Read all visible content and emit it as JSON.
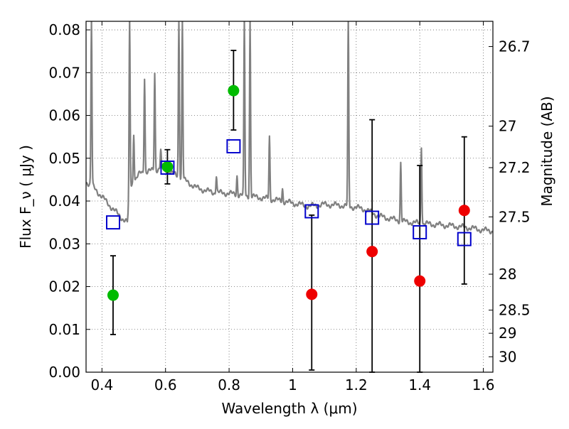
{
  "chart_data": {
    "type": "scatter",
    "xlabel": "Wavelength  λ (μm)",
    "ylabel_left": "Flux  F_ν  ( μJy )",
    "ylabel_right": "Magnitude (AB)",
    "xlim": [
      0.35,
      1.63
    ],
    "ylim": [
      0.0,
      0.082
    ],
    "grid": true,
    "x_ticks": [
      0.4,
      0.6,
      0.8,
      1.0,
      1.2,
      1.4,
      1.6
    ],
    "x_tick_labels": [
      "0.4",
      "0.6",
      "0.8",
      "1",
      "1.2",
      "1.4",
      "1.6"
    ],
    "y_ticks": [
      0.0,
      0.01,
      0.02,
      0.03,
      0.04,
      0.05,
      0.06,
      0.07,
      0.08
    ],
    "y_tick_labels": [
      "0.00",
      "0.01",
      "0.02",
      "0.03",
      "0.04",
      "0.05",
      "0.06",
      "0.07",
      "0.08"
    ],
    "right_ticks": [
      {
        "label": "26.7",
        "flux": 0.0761
      },
      {
        "label": "27",
        "flux": 0.0575
      },
      {
        "label": "27.2",
        "flux": 0.0478
      },
      {
        "label": "27.5",
        "flux": 0.0363
      },
      {
        "label": "28",
        "flux": 0.0229
      },
      {
        "label": "28.5",
        "flux": 0.0145
      },
      {
        "label": "29",
        "flux": 0.0091
      },
      {
        "label": "30",
        "flux": 0.0036
      }
    ],
    "colors": {
      "spectrum": "#808080",
      "measured_green": "#00bb00",
      "measured_red": "#ee0000",
      "model_boxes": "#0000cc",
      "errorbar": "#000000",
      "grid": "#888888"
    },
    "series": [
      {
        "kind": "measured_green",
        "points": [
          {
            "x": 0.435,
            "y": 0.018,
            "err_low": 0.0088,
            "err_high": 0.0272
          },
          {
            "x": 0.606,
            "y": 0.048,
            "err_low": 0.044,
            "err_high": 0.052
          },
          {
            "x": 0.814,
            "y": 0.0658,
            "err_low": 0.0566,
            "err_high": 0.0752
          }
        ]
      },
      {
        "kind": "measured_red",
        "points": [
          {
            "x": 1.06,
            "y": 0.0182,
            "err_low": 0.0005,
            "err_high": 0.0367
          },
          {
            "x": 1.25,
            "y": 0.0282,
            "err_low": 0.0,
            "err_high": 0.059
          },
          {
            "x": 1.4,
            "y": 0.0213,
            "err_low": 0.0,
            "err_high": 0.0483
          },
          {
            "x": 1.54,
            "y": 0.0378,
            "err_low": 0.0206,
            "err_high": 0.055
          }
        ]
      },
      {
        "kind": "model_boxes",
        "points": [
          {
            "x": 0.435,
            "y": 0.035
          },
          {
            "x": 0.606,
            "y": 0.0478
          },
          {
            "x": 0.814,
            "y": 0.0528
          },
          {
            "x": 1.06,
            "y": 0.0376
          },
          {
            "x": 1.25,
            "y": 0.0361
          },
          {
            "x": 1.4,
            "y": 0.0327
          },
          {
            "x": 1.54,
            "y": 0.0311
          }
        ]
      }
    ],
    "spectrum": {
      "continuum": [
        [
          0.35,
          0.0445
        ],
        [
          0.37,
          0.0435
        ],
        [
          0.4,
          0.041
        ],
        [
          0.43,
          0.0385
        ],
        [
          0.46,
          0.0362
        ],
        [
          0.48,
          0.035
        ],
        [
          0.49,
          0.0435
        ],
        [
          0.52,
          0.0465
        ],
        [
          0.55,
          0.047
        ],
        [
          0.58,
          0.0475
        ],
        [
          0.61,
          0.047
        ],
        [
          0.65,
          0.0453
        ],
        [
          0.7,
          0.043
        ],
        [
          0.75,
          0.042
        ],
        [
          0.8,
          0.0418
        ],
        [
          0.85,
          0.0412
        ],
        [
          0.9,
          0.0408
        ],
        [
          0.95,
          0.0402
        ],
        [
          1.0,
          0.0395
        ],
        [
          1.05,
          0.0388
        ],
        [
          1.1,
          0.0392
        ],
        [
          1.15,
          0.039
        ],
        [
          1.2,
          0.0385
        ],
        [
          1.23,
          0.038
        ],
        [
          1.27,
          0.0365
        ],
        [
          1.3,
          0.036
        ],
        [
          1.35,
          0.0352
        ],
        [
          1.4,
          0.0348
        ],
        [
          1.45,
          0.0345
        ],
        [
          1.5,
          0.0342
        ],
        [
          1.55,
          0.0338
        ],
        [
          1.6,
          0.0332
        ],
        [
          1.63,
          0.033
        ]
      ],
      "lines": [
        {
          "x": 0.367,
          "peak": 0.082
        },
        {
          "x": 0.487,
          "peak": 0.082
        },
        {
          "x": 0.5,
          "peak": 0.056
        },
        {
          "x": 0.534,
          "peak": 0.069
        },
        {
          "x": 0.566,
          "peak": 0.07
        },
        {
          "x": 0.585,
          "peak": 0.052
        },
        {
          "x": 0.642,
          "peak": 0.082
        },
        {
          "x": 0.653,
          "peak": 0.082
        },
        {
          "x": 0.76,
          "peak": 0.046
        },
        {
          "x": 0.825,
          "peak": 0.046
        },
        {
          "x": 0.848,
          "peak": 0.082
        },
        {
          "x": 0.866,
          "peak": 0.082
        },
        {
          "x": 0.927,
          "peak": 0.055
        },
        {
          "x": 0.968,
          "peak": 0.043
        },
        {
          "x": 1.175,
          "peak": 0.082
        },
        {
          "x": 1.34,
          "peak": 0.049
        },
        {
          "x": 1.405,
          "peak": 0.053
        }
      ]
    }
  }
}
